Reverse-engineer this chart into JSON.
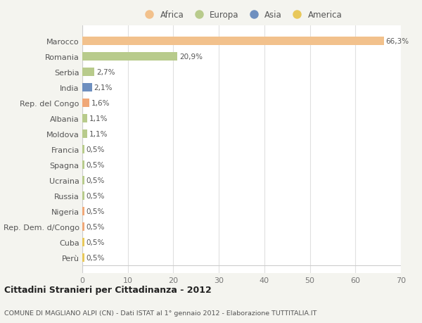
{
  "categories": [
    "Marocco",
    "Romania",
    "Serbia",
    "India",
    "Rep. del Congo",
    "Albania",
    "Moldova",
    "Francia",
    "Spagna",
    "Ucraina",
    "Russia",
    "Nigeria",
    "Rep. Dem. d/Congo",
    "Cuba",
    "Perù"
  ],
  "values": [
    66.3,
    20.9,
    2.7,
    2.1,
    1.6,
    1.1,
    1.1,
    0.5,
    0.5,
    0.5,
    0.5,
    0.5,
    0.5,
    0.5,
    0.5
  ],
  "labels": [
    "66,3%",
    "20,9%",
    "2,7%",
    "2,1%",
    "1,6%",
    "1,1%",
    "1,1%",
    "0,5%",
    "0,5%",
    "0,5%",
    "0,5%",
    "0,5%",
    "0,5%",
    "0,5%",
    "0,5%"
  ],
  "colors": [
    "#f2c18c",
    "#b8cb8c",
    "#b8cb8c",
    "#6e8fbf",
    "#f0a878",
    "#b8cb8c",
    "#b8cb8c",
    "#b8cb8c",
    "#b8cb8c",
    "#b8cb8c",
    "#b8cb8c",
    "#f0a878",
    "#f0a878",
    "#e8c85a",
    "#e8c85a"
  ],
  "legend_labels": [
    "Africa",
    "Europa",
    "Asia",
    "America"
  ],
  "legend_colors": [
    "#f2c18c",
    "#b8cb8c",
    "#6e8fbf",
    "#e8c85a"
  ],
  "title": "Cittadini Stranieri per Cittadinanza - 2012",
  "subtitle": "COMUNE DI MAGLIANO ALPI (CN) - Dati ISTAT al 1° gennaio 2012 - Elaborazione TUTTITALIA.IT",
  "xlim": [
    0,
    70
  ],
  "xticks": [
    0,
    10,
    20,
    30,
    40,
    50,
    60,
    70
  ],
  "bg_color": "#f4f4ef",
  "plot_bg": "#ffffff",
  "grid_color": "#e0e0e0"
}
